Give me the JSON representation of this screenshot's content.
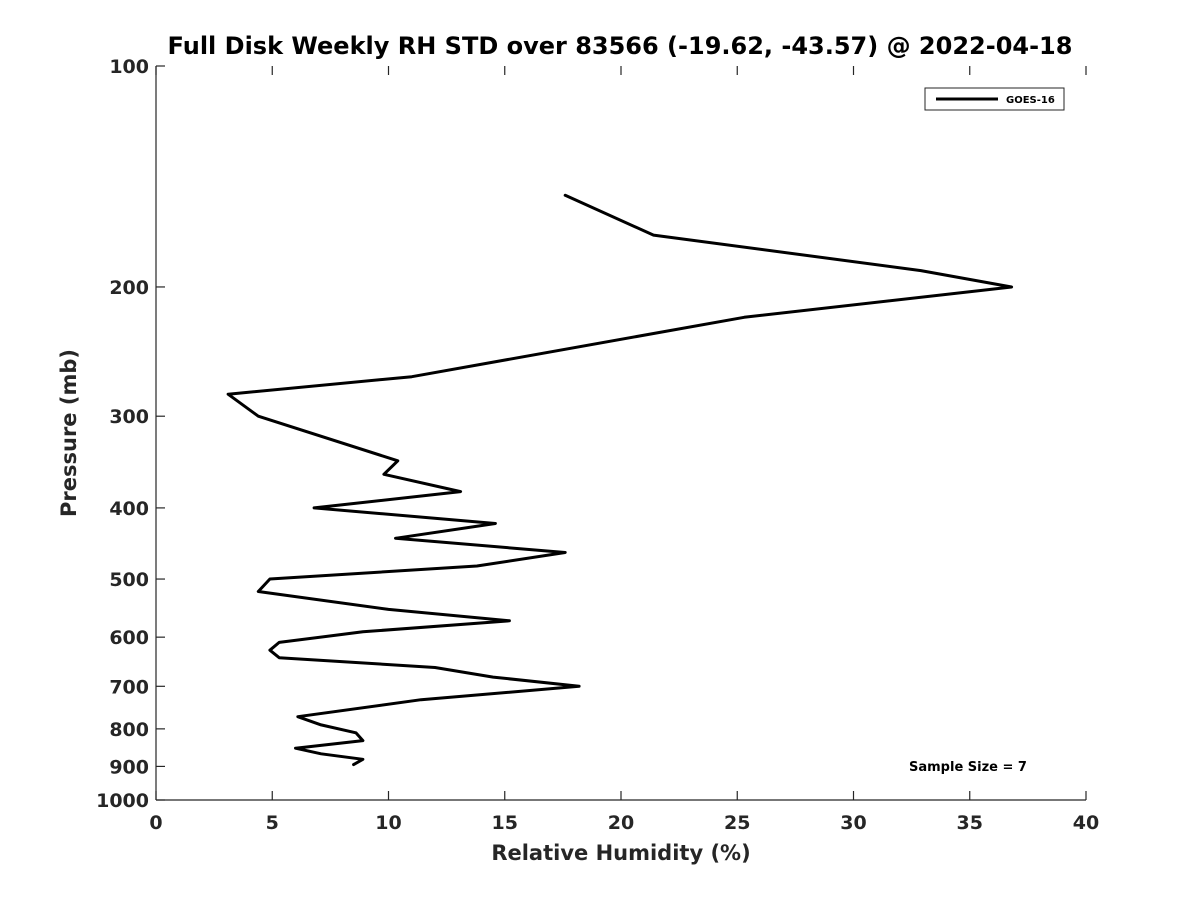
{
  "chart_data": {
    "type": "line",
    "title": "Full Disk Weekly RH STD over 83566 (-19.62, -43.57) @ 2022-04-18",
    "xlabel": "Relative Humidity (%)",
    "ylabel": "Pressure (mb)",
    "xlim": [
      0,
      40
    ],
    "ylim": [
      100,
      1000
    ],
    "y_scale": "log",
    "y_reversed": true,
    "x_ticks": [
      0,
      5,
      10,
      15,
      20,
      25,
      30,
      35,
      40
    ],
    "y_ticks": [
      100,
      200,
      300,
      400,
      500,
      600,
      700,
      800,
      900,
      1000
    ],
    "grid": false,
    "legend_position": "top-right",
    "annotation": "Sample Size = 7",
    "series": [
      {
        "name": "GOES-16",
        "color": "#000000",
        "points": [
          [
            17.6,
            150
          ],
          [
            21.4,
            170
          ],
          [
            32.9,
            190
          ],
          [
            36.8,
            200
          ],
          [
            25.3,
            220
          ],
          [
            11.0,
            265
          ],
          [
            3.1,
            280
          ],
          [
            4.4,
            300
          ],
          [
            10.4,
            345
          ],
          [
            9.8,
            360
          ],
          [
            13.1,
            380
          ],
          [
            6.8,
            400
          ],
          [
            14.6,
            420
          ],
          [
            10.3,
            440
          ],
          [
            17.6,
            460
          ],
          [
            13.8,
            480
          ],
          [
            4.9,
            500
          ],
          [
            4.4,
            520
          ],
          [
            10.0,
            550
          ],
          [
            15.2,
            570
          ],
          [
            8.9,
            590
          ],
          [
            5.3,
            610
          ],
          [
            4.9,
            625
          ],
          [
            5.3,
            640
          ],
          [
            12.0,
            660
          ],
          [
            14.5,
            680
          ],
          [
            18.2,
            700
          ],
          [
            11.4,
            730
          ],
          [
            6.1,
            770
          ],
          [
            7.1,
            790
          ],
          [
            8.6,
            810
          ],
          [
            8.9,
            830
          ],
          [
            6.0,
            850
          ],
          [
            7.1,
            865
          ],
          [
            8.9,
            880
          ],
          [
            8.5,
            895
          ]
        ]
      }
    ]
  }
}
